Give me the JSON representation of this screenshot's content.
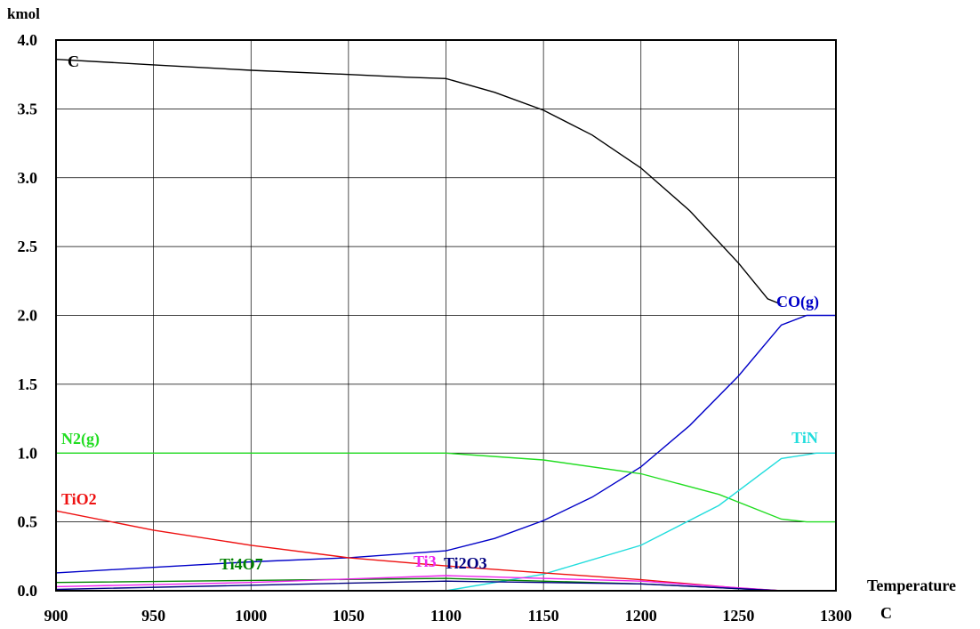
{
  "chart_data": {
    "type": "line",
    "title": "",
    "xlabel": "Temperature",
    "xlabel_unit": "C",
    "ylabel": "kmol",
    "xlim": [
      900,
      1300
    ],
    "ylim": [
      0,
      4
    ],
    "grid": true,
    "x_ticks": [
      900,
      950,
      1000,
      1050,
      1100,
      1150,
      1200,
      1250,
      1300
    ],
    "y_ticks": [
      "0.0",
      "0.5",
      "1.0",
      "1.5",
      "2.0",
      "2.5",
      "3.0",
      "3.5",
      "4.0"
    ],
    "series": [
      {
        "name": "C",
        "color": "#000000",
        "x": [
          900,
          950,
          1000,
          1050,
          1080,
          1100,
          1125,
          1150,
          1175,
          1200,
          1225,
          1250,
          1265,
          1272
        ],
        "y": [
          3.86,
          3.82,
          3.78,
          3.75,
          3.73,
          3.72,
          3.62,
          3.49,
          3.31,
          3.07,
          2.76,
          2.38,
          2.12,
          2.08
        ]
      },
      {
        "name": "CO(g)",
        "color": "#0000c8",
        "x": [
          900,
          950,
          1000,
          1050,
          1100,
          1125,
          1150,
          1175,
          1200,
          1225,
          1250,
          1272,
          1285,
          1300
        ],
        "y": [
          0.13,
          0.17,
          0.21,
          0.24,
          0.29,
          0.38,
          0.51,
          0.68,
          0.9,
          1.2,
          1.56,
          1.93,
          2.0,
          2.0
        ]
      },
      {
        "name": "N2(g)",
        "color": "#22dd22",
        "x": [
          900,
          1000,
          1100,
          1150,
          1200,
          1240,
          1272,
          1285,
          1300
        ],
        "y": [
          1.0,
          1.0,
          1.0,
          0.95,
          0.85,
          0.7,
          0.52,
          0.5,
          0.5
        ]
      },
      {
        "name": "TiN",
        "color": "#22dddd",
        "x": [
          900,
          1100,
          1150,
          1200,
          1240,
          1272,
          1290,
          1300
        ],
        "y": [
          0.0,
          0.0,
          0.12,
          0.33,
          0.62,
          0.96,
          1.0,
          1.0
        ]
      },
      {
        "name": "TiO2",
        "color": "#ee1111",
        "x": [
          900,
          950,
          1000,
          1050,
          1100,
          1150,
          1200,
          1250,
          1272,
          1300
        ],
        "y": [
          0.58,
          0.44,
          0.33,
          0.24,
          0.18,
          0.13,
          0.08,
          0.02,
          0.0,
          0.0
        ]
      },
      {
        "name": "Ti4O7",
        "color": "#008000",
        "x": [
          900,
          1000,
          1100,
          1200,
          1272,
          1300
        ],
        "y": [
          0.06,
          0.075,
          0.09,
          0.05,
          0.0,
          0.0
        ]
      },
      {
        "name": "Ti3",
        "color": "#ee22ee",
        "x": [
          900,
          1000,
          1100,
          1200,
          1272,
          1300
        ],
        "y": [
          0.03,
          0.06,
          0.11,
          0.07,
          0.0,
          0.0
        ]
      },
      {
        "name": "Ti2O3",
        "color": "#000080",
        "x": [
          900,
          1000,
          1100,
          1200,
          1272,
          1300
        ],
        "y": [
          0.01,
          0.04,
          0.07,
          0.05,
          0.0,
          0.0
        ]
      }
    ]
  }
}
